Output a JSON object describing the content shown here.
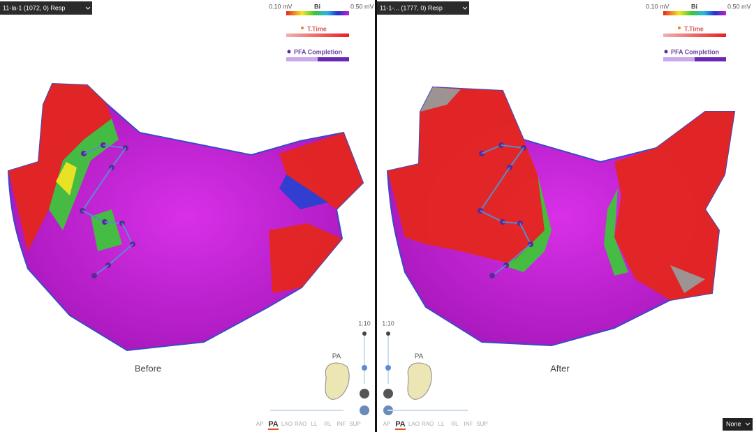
{
  "panels": [
    {
      "map_selector": "11-la-1 (1072, 0) Resp",
      "legend": {
        "min": "0.10 mV",
        "label": "Bi",
        "max": "0.50 mV",
        "t_time": "T.Time",
        "pfa": "PFA Completion"
      },
      "caption": "Before",
      "zoom": "1:10",
      "orientation": "PA",
      "views": [
        "AP",
        "PA",
        "LAO",
        "RAO",
        "LL",
        "RL",
        "INF",
        "SUP"
      ]
    },
    {
      "map_selector": "11-1-... (1777, 0) Resp",
      "legend": {
        "min": "0.10 mV",
        "label": "Bi",
        "max": "0.50 mV",
        "t_time": "T.Time",
        "pfa": "PFA Completion"
      },
      "caption": "After",
      "zoom": "1:10",
      "orientation": "PA",
      "views": [
        "AP",
        "PA",
        "LAO",
        "RAO",
        "LL",
        "RL",
        "INF",
        "SUP"
      ]
    }
  ],
  "footer": {
    "dropdown": "None"
  }
}
